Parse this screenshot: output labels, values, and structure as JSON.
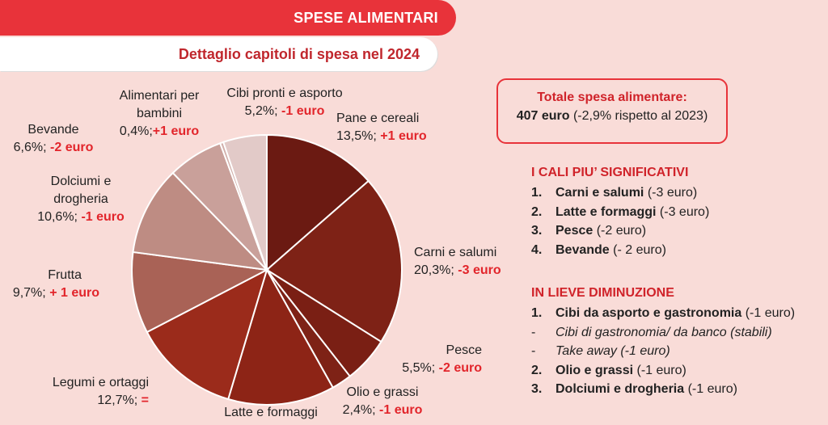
{
  "header": {
    "title": "SPESE ALIMENTARI",
    "subtitle": "Dettaglio capitoli di spesa nel 2024"
  },
  "chart_data": {
    "type": "pie",
    "unit": "%",
    "slices": [
      {
        "label": "Pane e cereali",
        "value": 13.5,
        "value_text": "13,5%;",
        "change": "+1 euro",
        "color": "#6b1a12"
      },
      {
        "label": "Carni e salumi",
        "value": 20.3,
        "value_text": "20,3%;",
        "change": "-3 euro",
        "color": "#7e2216"
      },
      {
        "label": "Pesce",
        "value": 5.5,
        "value_text": "5,5%;",
        "change": "-2 euro",
        "color": "#7a1f14"
      },
      {
        "label": "Olio e grassi",
        "value": 2.4,
        "value_text": "2,4%;",
        "change": "-1 euro",
        "color": "#7e2216"
      },
      {
        "label": "Latte e formaggi",
        "value": 12.7,
        "value_text": "",
        "change": "",
        "color": "#8d2416"
      },
      {
        "label": "Legumi e ortaggi",
        "value": 12.7,
        "value_text": "12,7%;",
        "change": "=",
        "color": "#9b2b1b"
      },
      {
        "label": "Frutta",
        "value": 9.7,
        "value_text": "9,7%;",
        "change": "+ 1 euro",
        "color": "#a96256"
      },
      {
        "label": "Dolciumi e drogheria",
        "value": 10.6,
        "value_text": "10,6%;",
        "change": "-1 euro",
        "color": "#be8c83"
      },
      {
        "label": "Bevande",
        "value": 6.6,
        "value_text": "6,6%;",
        "change": "-2 euro",
        "color": "#c9a09a"
      },
      {
        "label": "Alimentari per bambini",
        "value": 0.4,
        "value_text": "0,4%;",
        "change": "+1 euro",
        "color": "#d2b0ab"
      },
      {
        "label": "Cibi pronti e asporto",
        "value": 5.2,
        "value_text": "5,2%;",
        "change": "-1 euro",
        "color": "#e2cac8"
      }
    ]
  },
  "labels": {
    "pane": {
      "name": "Pane e cereali",
      "value": "13,5%;",
      "change": "+1 euro"
    },
    "carni": {
      "name": "Carni e salumi",
      "value": "20,3%;",
      "change": "-3 euro"
    },
    "pesce": {
      "name": "Pesce",
      "value": "5,5%;",
      "change": "-2 euro"
    },
    "olio": {
      "name": "Olio e grassi",
      "value": "2,4%;",
      "change": "-1 euro"
    },
    "latte": {
      "name": "Latte e formaggi"
    },
    "legumi": {
      "name": "Legumi e ortaggi",
      "value": "12,7%;",
      "change": "="
    },
    "frutta": {
      "name": "Frutta",
      "value": "9,7%;",
      "change": "+ 1 euro"
    },
    "dolciumi": {
      "name1": "Dolciumi e",
      "name2": "drogheria",
      "value": "10,6%;",
      "change": "-1 euro"
    },
    "bevande": {
      "name": "Bevande",
      "value": "6,6%;",
      "change": "-2 euro"
    },
    "bambini": {
      "name1": "Alimentari per",
      "name2": "bambini",
      "value": "0,4%;",
      "change": "+1 euro"
    },
    "cibi": {
      "name": "Cibi pronti e asporto",
      "value": "5,2%;",
      "change": "-1 euro"
    }
  },
  "total": {
    "title": "Totale spesa alimentare:",
    "amount": "407 euro",
    "note": "(-2,9% rispetto al 2023)"
  },
  "cali": {
    "title": "I CALI PIU’ SIGNIFICATIVI",
    "items": [
      {
        "num": "1.",
        "name": "Carni e salumi",
        "detail": "(-3 euro)"
      },
      {
        "num": "2.",
        "name": "Latte e formaggi",
        "detail": "(-3 euro)"
      },
      {
        "num": "3.",
        "name": "Pesce",
        "detail": "(-2 euro)"
      },
      {
        "num": "4.",
        "name": "Bevande",
        "detail": "(- 2 euro)"
      }
    ]
  },
  "lieve": {
    "title": "IN LIEVE DIMINUZIONE",
    "item1": {
      "num": "1.",
      "name": "Cibi da asporto e gastronomia",
      "detail": "(-1 euro)"
    },
    "sub1": {
      "dash": "-",
      "text": "Cibi di gastronomia/ da banco (stabili)"
    },
    "sub2": {
      "dash": "-",
      "text": "Take away (-1 euro)"
    },
    "item2": {
      "num": "2.",
      "name": "Olio e grassi",
      "detail": "(-1 euro)"
    },
    "item3": {
      "num": "3.",
      "name": "Dolciumi e drogheria",
      "detail": "(-1 euro)"
    }
  }
}
